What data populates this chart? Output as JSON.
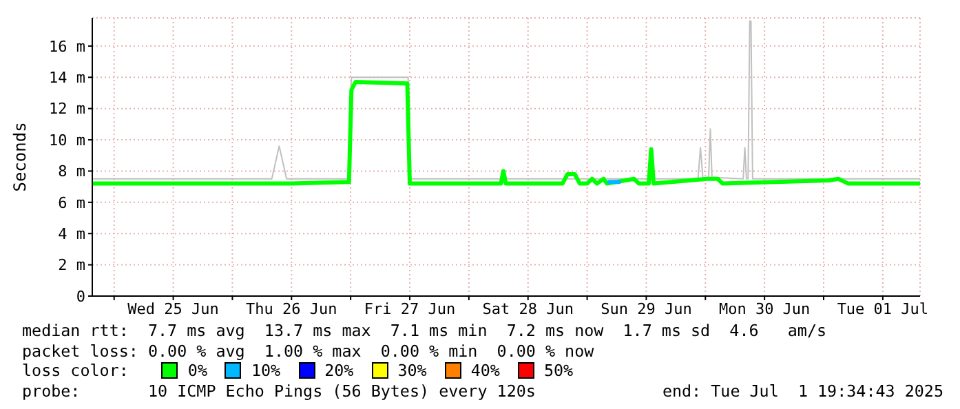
{
  "chart_data": {
    "type": "line",
    "ylabel": "Seconds",
    "legend": "bottom",
    "legend_title": "loss color:",
    "grid": true,
    "marker": "none",
    "line_style": "solid",
    "xlim": [
      "2025-06-24T19:34",
      "2025-07-01T19:34"
    ],
    "xticks": [
      {
        "value": "2025-06-25T00:00",
        "label": null
      },
      {
        "value": "2025-06-25T12:00",
        "label": "Wed 25 Jun"
      },
      {
        "value": "2025-06-26T00:00",
        "label": null
      },
      {
        "value": "2025-06-26T12:00",
        "label": "Thu 26 Jun"
      },
      {
        "value": "2025-06-27T00:00",
        "label": null
      },
      {
        "value": "2025-06-27T12:00",
        "label": "Fri 27 Jun"
      },
      {
        "value": "2025-06-28T00:00",
        "label": null
      },
      {
        "value": "2025-06-28T12:00",
        "label": "Sat 28 Jun"
      },
      {
        "value": "2025-06-29T00:00",
        "label": null
      },
      {
        "value": "2025-06-29T12:00",
        "label": "Sun 29 Jun"
      },
      {
        "value": "2025-06-30T00:00",
        "label": null
      },
      {
        "value": "2025-06-30T12:00",
        "label": "Mon 30 Jun"
      },
      {
        "value": "2025-07-01T00:00",
        "label": null
      },
      {
        "value": "2025-07-01T12:00",
        "label": "Tue 01 Jul"
      }
    ],
    "ylim": [
      0,
      17.8
    ],
    "yticks": [
      0,
      {
        "value": 2,
        "label": "2 m"
      },
      {
        "value": 4,
        "label": "4 m"
      },
      {
        "value": 6,
        "label": "6 m"
      },
      {
        "value": 8,
        "label": "8 m"
      },
      {
        "value": 10,
        "label": "10 m"
      },
      {
        "value": 12,
        "label": "12 m"
      },
      {
        "value": 14,
        "label": "14 m"
      },
      {
        "value": 16,
        "label": "16 m"
      }
    ],
    "series": [
      {
        "color": "#c0c0c0",
        "x": [
          "2025-06-24T19:34",
          "2025-06-26T08:00",
          "2025-06-26T09:30",
          "2025-06-26T11:00",
          "2025-06-26T23:50",
          "2025-06-27T00:10",
          "2025-06-27T11:40",
          "2025-06-27T12:00",
          "2025-06-29T22:30",
          "2025-06-29T23:00",
          "2025-06-29T23:30",
          "2025-06-30T00:40",
          "2025-06-30T01:00",
          "2025-06-30T01:20",
          "2025-06-30T07:40",
          "2025-06-30T08:00",
          "2025-06-30T08:20",
          "2025-06-30T08:40",
          "2025-06-30T09:00",
          "2025-06-30T09:15",
          "2025-06-30T09:35",
          "2025-07-01T19:34"
        ],
        "values": [
          7.5,
          7.5,
          9.6,
          7.5,
          7.5,
          14.0,
          14.0,
          7.5,
          7.5,
          9.5,
          7.5,
          7.6,
          10.7,
          7.6,
          7.5,
          9.5,
          7.5,
          7.5,
          17.6,
          17.6,
          7.5,
          7.5
        ]
      },
      {
        "name": "0%",
        "color": "#00ff00",
        "x": [
          "2025-06-24T19:34",
          "2025-06-25T12:00",
          "2025-06-26T12:00",
          "2025-06-26T23:40",
          "2025-06-27T00:10",
          "2025-06-27T01:00",
          "2025-06-27T11:30",
          "2025-06-27T12:00",
          "2025-06-28T06:30",
          "2025-06-28T07:00",
          "2025-06-28T07:30",
          "2025-06-28T19:00",
          "2025-06-28T20:00",
          "2025-06-28T21:30",
          "2025-06-28T22:30",
          "2025-06-29T00:00",
          "2025-06-29T01:00",
          "2025-06-29T02:00",
          "2025-06-29T03:20",
          "2025-06-29T04:00",
          "2025-06-29T09:30",
          "2025-06-29T10:30",
          "2025-06-29T12:30",
          "2025-06-29T13:00",
          "2025-06-29T13:30",
          "2025-06-30T00:15",
          "2025-06-30T02:30",
          "2025-06-30T03:30",
          "2025-07-01T01:00",
          "2025-07-01T03:00",
          "2025-07-01T05:00",
          "2025-07-01T19:34"
        ],
        "values": [
          7.2,
          7.2,
          7.2,
          7.3,
          13.2,
          13.7,
          13.6,
          7.2,
          7.2,
          8.0,
          7.2,
          7.2,
          7.8,
          7.8,
          7.2,
          7.2,
          7.5,
          7.2,
          7.5,
          7.2,
          7.5,
          7.2,
          7.2,
          9.4,
          7.2,
          7.5,
          7.5,
          7.2,
          7.4,
          7.5,
          7.2,
          7.2
        ]
      },
      {
        "name": "10%",
        "color": "#00b8ff",
        "x": [
          "2025-06-29T04:30",
          "2025-06-29T06:30"
        ],
        "values": [
          7.3,
          7.3
        ]
      },
      {
        "name": "20%",
        "color": "#0000ff"
      },
      {
        "name": "30%",
        "color": "#ffff00"
      },
      {
        "name": "40%",
        "color": "#ff8000"
      },
      {
        "name": "50%",
        "color": "#ff0000"
      }
    ],
    "annotations": [
      "median rtt:  7.7 ms avg  13.7 ms max  7.1 ms min  7.2 ms now  1.7 ms sd  4.6   am/s",
      "packet loss: 0.00 % avg  1.00 % max  0.00 % min  0.00 % now",
      "probe:       10 ICMP Echo Pings (56 Bytes) every 120s",
      "end: Tue Jul  1 19:34:43 2025"
    ]
  }
}
